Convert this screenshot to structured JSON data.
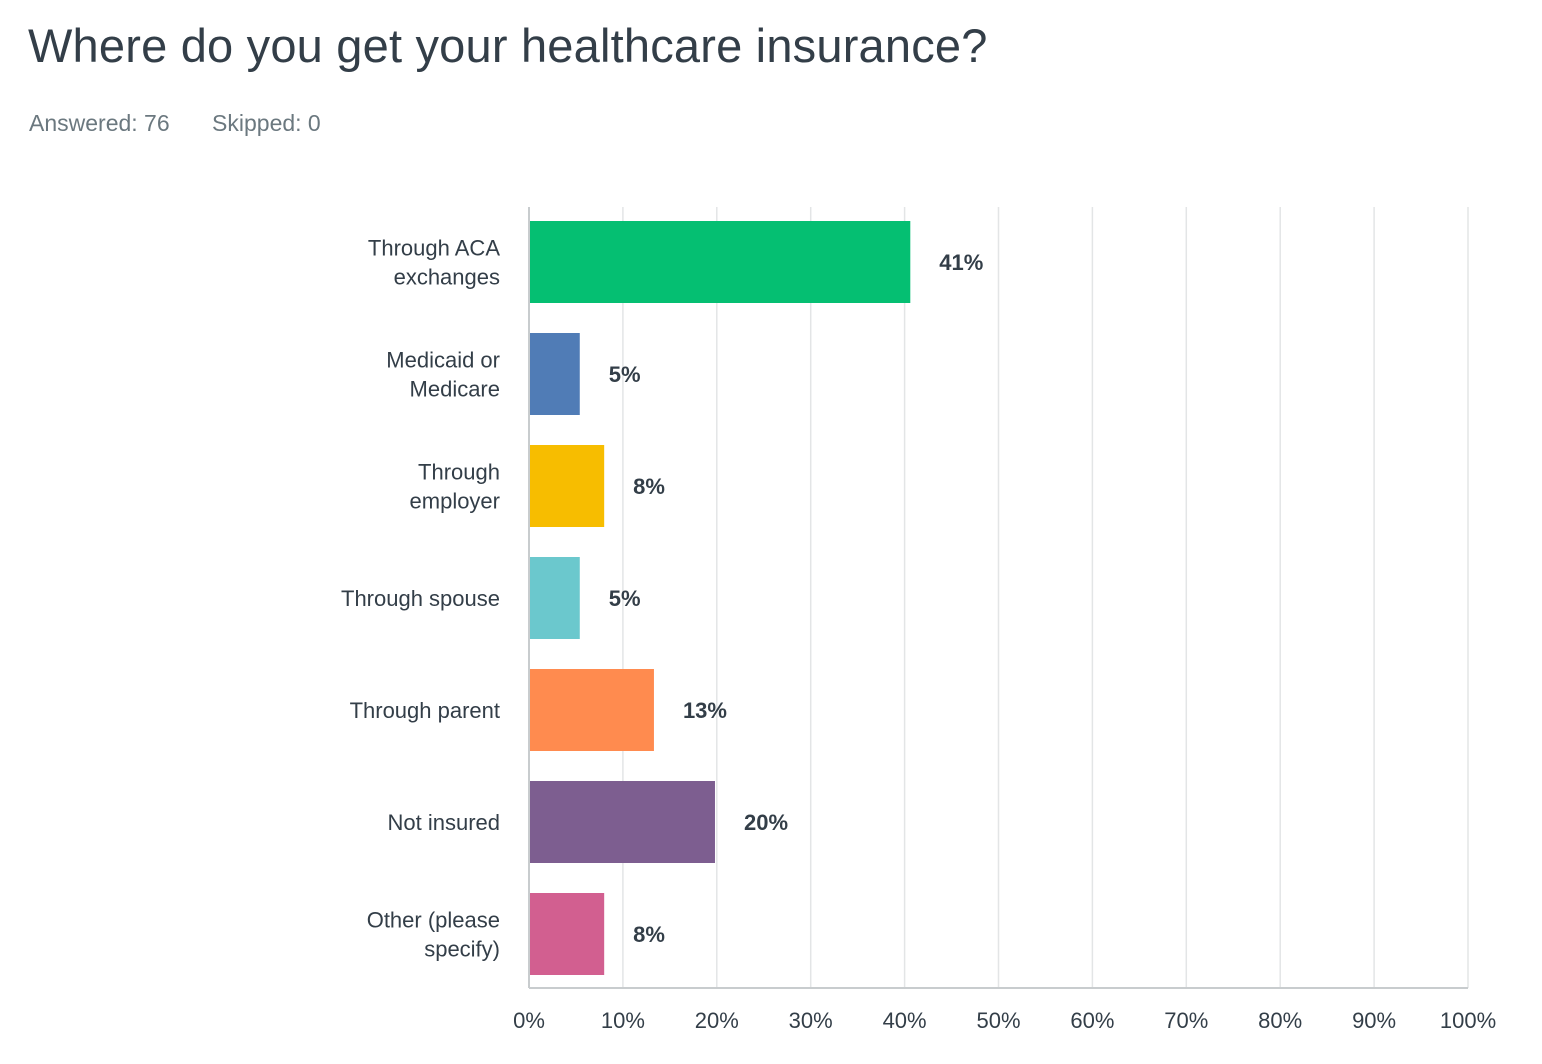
{
  "header": {
    "title": "Where do you get your healthcare insurance?",
    "answered": "Answered: 76",
    "skipped": "Skipped: 0"
  },
  "chart_data": {
    "type": "bar",
    "orientation": "horizontal",
    "categories": [
      [
        "Through ACA",
        "exchanges"
      ],
      [
        "Medicaid or",
        "Medicare"
      ],
      [
        "Through",
        "employer"
      ],
      [
        "Through spouse"
      ],
      [
        "Through parent"
      ],
      [
        "Not insured"
      ],
      [
        "Other (please",
        "specify)"
      ]
    ],
    "values": [
      40.5,
      5.3,
      7.9,
      5.3,
      13.2,
      19.7,
      7.9
    ],
    "value_labels": [
      "41%",
      "5%",
      "8%",
      "5%",
      "13%",
      "20%",
      "8%"
    ],
    "colors": [
      "#05bf72",
      "#507cb6",
      "#f7bd00",
      "#6bc8cd",
      "#ff8b4f",
      "#7d5e90",
      "#d25f90"
    ],
    "xlim": [
      0,
      100
    ],
    "xticks": [
      "0%",
      "10%",
      "20%",
      "30%",
      "40%",
      "50%",
      "60%",
      "70%",
      "80%",
      "90%",
      "100%"
    ],
    "grid": true,
    "gridline_color": "#e3e5e6"
  }
}
